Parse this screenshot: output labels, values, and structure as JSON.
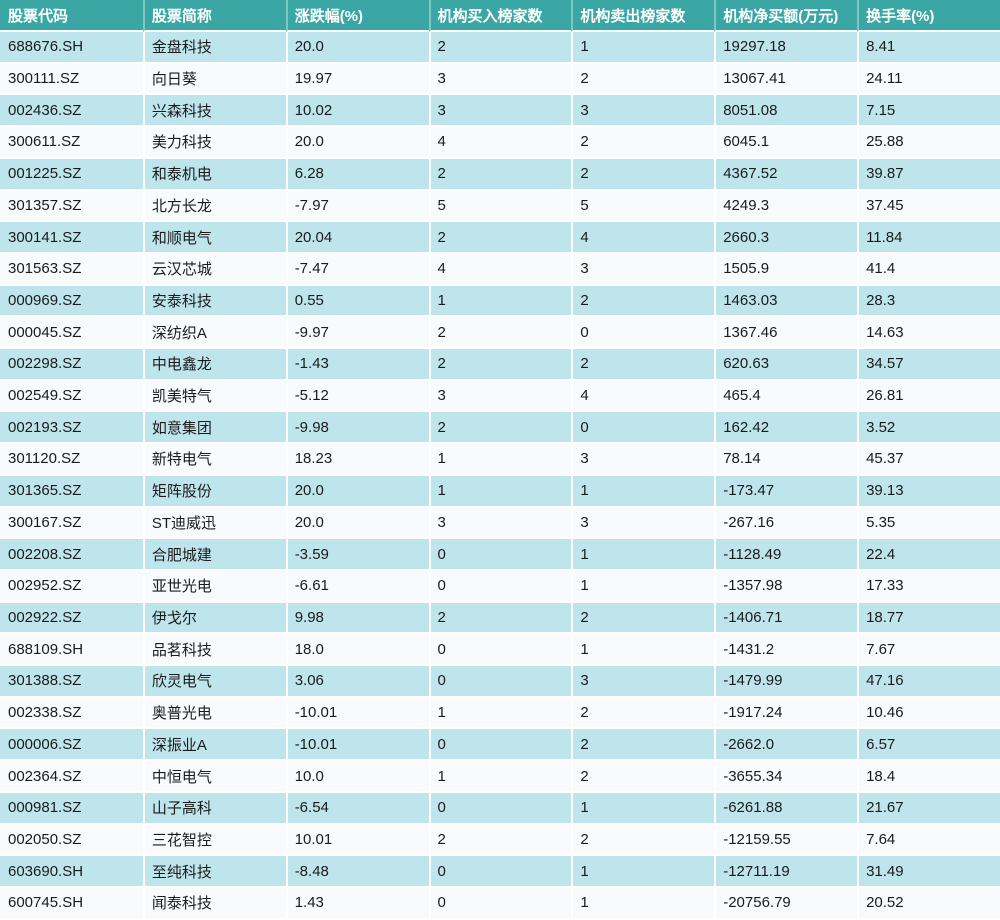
{
  "colors": {
    "header_bg": "#3AA7A4",
    "header_text": "#FFFFFF",
    "row_alt_bg": "#BFE5EC",
    "row_bg": "#F8FAFB",
    "cell_text": "#1B1B1B"
  },
  "table": {
    "columns": [
      "股票代码",
      "股票简称",
      "涨跌幅(%)",
      "机构买入榜家数",
      "机构卖出榜家数",
      "机构净买额(万元)",
      "换手率(%)"
    ],
    "rows": [
      [
        "688676.SH",
        "金盘科技",
        "20.0",
        "2",
        "1",
        "19297.18",
        "8.41"
      ],
      [
        "300111.SZ",
        "向日葵",
        "19.97",
        "3",
        "2",
        "13067.41",
        "24.11"
      ],
      [
        "002436.SZ",
        "兴森科技",
        "10.02",
        "3",
        "3",
        "8051.08",
        "7.15"
      ],
      [
        "300611.SZ",
        "美力科技",
        "20.0",
        "4",
        "2",
        "6045.1",
        "25.88"
      ],
      [
        "001225.SZ",
        "和泰机电",
        "6.28",
        "2",
        "2",
        "4367.52",
        "39.87"
      ],
      [
        "301357.SZ",
        "北方长龙",
        "-7.97",
        "5",
        "5",
        "4249.3",
        "37.45"
      ],
      [
        "300141.SZ",
        "和顺电气",
        "20.04",
        "2",
        "4",
        "2660.3",
        "11.84"
      ],
      [
        "301563.SZ",
        "云汉芯城",
        "-7.47",
        "4",
        "3",
        "1505.9",
        "41.4"
      ],
      [
        "000969.SZ",
        "安泰科技",
        "0.55",
        "1",
        "2",
        "1463.03",
        "28.3"
      ],
      [
        "000045.SZ",
        "深纺织A",
        "-9.97",
        "2",
        "0",
        "1367.46",
        "14.63"
      ],
      [
        "002298.SZ",
        "中电鑫龙",
        "-1.43",
        "2",
        "2",
        "620.63",
        "34.57"
      ],
      [
        "002549.SZ",
        "凯美特气",
        "-5.12",
        "3",
        "4",
        "465.4",
        "26.81"
      ],
      [
        "002193.SZ",
        "如意集团",
        "-9.98",
        "2",
        "0",
        "162.42",
        "3.52"
      ],
      [
        "301120.SZ",
        "新特电气",
        "18.23",
        "1",
        "3",
        "78.14",
        "45.37"
      ],
      [
        "301365.SZ",
        "矩阵股份",
        "20.0",
        "1",
        "1",
        "-173.47",
        "39.13"
      ],
      [
        "300167.SZ",
        "ST迪威迅",
        "20.0",
        "3",
        "3",
        "-267.16",
        "5.35"
      ],
      [
        "002208.SZ",
        "合肥城建",
        "-3.59",
        "0",
        "1",
        "-1128.49",
        "22.4"
      ],
      [
        "002952.SZ",
        "亚世光电",
        "-6.61",
        "0",
        "1",
        "-1357.98",
        "17.33"
      ],
      [
        "002922.SZ",
        "伊戈尔",
        "9.98",
        "2",
        "2",
        "-1406.71",
        "18.77"
      ],
      [
        "688109.SH",
        "品茗科技",
        "18.0",
        "0",
        "1",
        "-1431.2",
        "7.67"
      ],
      [
        "301388.SZ",
        "欣灵电气",
        "3.06",
        "0",
        "3",
        "-1479.99",
        "47.16"
      ],
      [
        "002338.SZ",
        "奥普光电",
        "-10.01",
        "1",
        "2",
        "-1917.24",
        "10.46"
      ],
      [
        "000006.SZ",
        "深振业A",
        "-10.01",
        "0",
        "2",
        "-2662.0",
        "6.57"
      ],
      [
        "002364.SZ",
        "中恒电气",
        "10.0",
        "1",
        "2",
        "-3655.34",
        "18.4"
      ],
      [
        "000981.SZ",
        "山子高科",
        "-6.54",
        "0",
        "1",
        "-6261.88",
        "21.67"
      ],
      [
        "002050.SZ",
        "三花智控",
        "10.01",
        "2",
        "2",
        "-12159.55",
        "7.64"
      ],
      [
        "603690.SH",
        "至纯科技",
        "-8.48",
        "0",
        "1",
        "-12711.19",
        "31.49"
      ],
      [
        "600745.SH",
        "闻泰科技",
        "1.43",
        "0",
        "1",
        "-20756.79",
        "20.52"
      ]
    ]
  }
}
